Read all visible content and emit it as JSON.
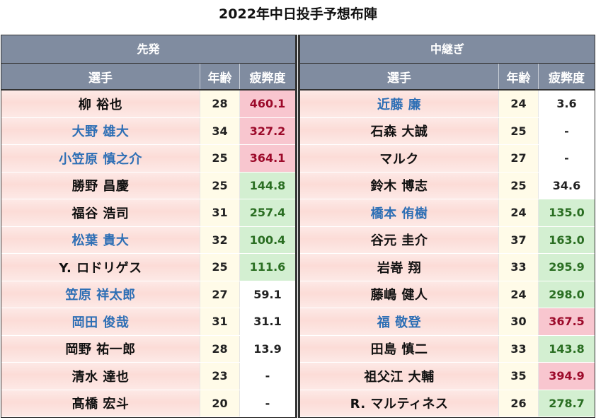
{
  "title": "2022年中日投手予想布陣",
  "left": {
    "section": "先発",
    "headers": {
      "name": "選手",
      "age": "年齢",
      "fatigue": "疲弊度"
    },
    "rows": [
      {
        "name": "柳 裕也",
        "age": "28",
        "fatigue": "460.1",
        "name_color": "black",
        "fatigue_color": "red"
      },
      {
        "name": "大野 雄大",
        "age": "34",
        "fatigue": "327.2",
        "name_color": "blue",
        "fatigue_color": "red"
      },
      {
        "name": "小笠原 慎之介",
        "age": "25",
        "fatigue": "364.1",
        "name_color": "blue",
        "fatigue_color": "red"
      },
      {
        "name": "勝野 昌慶",
        "age": "25",
        "fatigue": "144.8",
        "name_color": "black",
        "fatigue_color": "green"
      },
      {
        "name": "福谷 浩司",
        "age": "31",
        "fatigue": "257.4",
        "name_color": "black",
        "fatigue_color": "green"
      },
      {
        "name": "松葉 貴大",
        "age": "32",
        "fatigue": "100.4",
        "name_color": "blue",
        "fatigue_color": "green"
      },
      {
        "name": "Y. ロドリゲス",
        "age": "25",
        "fatigue": "111.6",
        "name_color": "black",
        "fatigue_color": "green"
      },
      {
        "name": "笠原 祥太郎",
        "age": "27",
        "fatigue": "59.1",
        "name_color": "blue",
        "fatigue_color": "none"
      },
      {
        "name": "岡田 俊哉",
        "age": "31",
        "fatigue": "31.1",
        "name_color": "blue",
        "fatigue_color": "none"
      },
      {
        "name": "岡野 祐一郎",
        "age": "28",
        "fatigue": "13.9",
        "name_color": "black",
        "fatigue_color": "none"
      },
      {
        "name": "清水 達也",
        "age": "23",
        "fatigue": "-",
        "name_color": "black",
        "fatigue_color": "none"
      },
      {
        "name": "髙橋 宏斗",
        "age": "20",
        "fatigue": "-",
        "name_color": "black",
        "fatigue_color": "none"
      }
    ]
  },
  "right": {
    "section": "中継ぎ",
    "headers": {
      "name": "選手",
      "age": "年齢",
      "fatigue": "疲弊度"
    },
    "rows": [
      {
        "name": "近藤 廉",
        "age": "24",
        "fatigue": "3.6",
        "name_color": "blue",
        "fatigue_color": "none"
      },
      {
        "name": "石森 大誠",
        "age": "25",
        "fatigue": "-",
        "name_color": "black",
        "fatigue_color": "none"
      },
      {
        "name": "マルク",
        "age": "27",
        "fatigue": "-",
        "name_color": "black",
        "fatigue_color": "none"
      },
      {
        "name": "鈴木 博志",
        "age": "25",
        "fatigue": "34.6",
        "name_color": "black",
        "fatigue_color": "none"
      },
      {
        "name": "橋本 侑樹",
        "age": "24",
        "fatigue": "135.0",
        "name_color": "blue",
        "fatigue_color": "green"
      },
      {
        "name": "谷元 圭介",
        "age": "37",
        "fatigue": "163.0",
        "name_color": "black",
        "fatigue_color": "green"
      },
      {
        "name": "岩嵜 翔",
        "age": "33",
        "fatigue": "295.9",
        "name_color": "black",
        "fatigue_color": "green"
      },
      {
        "name": "藤嶋 健人",
        "age": "24",
        "fatigue": "298.0",
        "name_color": "black",
        "fatigue_color": "green"
      },
      {
        "name": "福 敬登",
        "age": "30",
        "fatigue": "367.5",
        "name_color": "blue",
        "fatigue_color": "red"
      },
      {
        "name": "田島 慎二",
        "age": "33",
        "fatigue": "143.8",
        "name_color": "black",
        "fatigue_color": "green"
      },
      {
        "name": "祖父江 大輔",
        "age": "35",
        "fatigue": "394.9",
        "name_color": "black",
        "fatigue_color": "red"
      },
      {
        "name": "R. マルティネス",
        "age": "26",
        "fatigue": "278.7",
        "name_color": "black",
        "fatigue_color": "green"
      }
    ]
  }
}
